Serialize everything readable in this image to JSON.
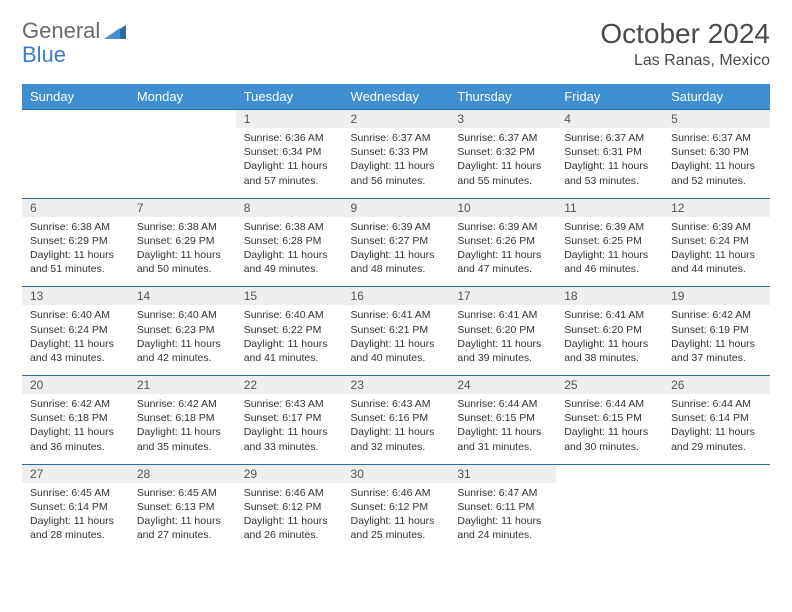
{
  "logo": {
    "text1": "General",
    "text2": "Blue",
    "icon_color": "#2c6aa0"
  },
  "title": "October 2024",
  "location": "Las Ranas, Mexico",
  "colors": {
    "header_bg": "#3d8fd1",
    "header_fg": "#ffffff",
    "daynum_bg": "#eeeeee",
    "border": "#2c6aa0",
    "text": "#333333",
    "title": "#4a4a4a"
  },
  "dayNames": [
    "Sunday",
    "Monday",
    "Tuesday",
    "Wednesday",
    "Thursday",
    "Friday",
    "Saturday"
  ],
  "weeks": [
    [
      null,
      null,
      {
        "n": "1",
        "sr": "6:36 AM",
        "ss": "6:34 PM",
        "dl": "11 hours and 57 minutes."
      },
      {
        "n": "2",
        "sr": "6:37 AM",
        "ss": "6:33 PM",
        "dl": "11 hours and 56 minutes."
      },
      {
        "n": "3",
        "sr": "6:37 AM",
        "ss": "6:32 PM",
        "dl": "11 hours and 55 minutes."
      },
      {
        "n": "4",
        "sr": "6:37 AM",
        "ss": "6:31 PM",
        "dl": "11 hours and 53 minutes."
      },
      {
        "n": "5",
        "sr": "6:37 AM",
        "ss": "6:30 PM",
        "dl": "11 hours and 52 minutes."
      }
    ],
    [
      {
        "n": "6",
        "sr": "6:38 AM",
        "ss": "6:29 PM",
        "dl": "11 hours and 51 minutes."
      },
      {
        "n": "7",
        "sr": "6:38 AM",
        "ss": "6:29 PM",
        "dl": "11 hours and 50 minutes."
      },
      {
        "n": "8",
        "sr": "6:38 AM",
        "ss": "6:28 PM",
        "dl": "11 hours and 49 minutes."
      },
      {
        "n": "9",
        "sr": "6:39 AM",
        "ss": "6:27 PM",
        "dl": "11 hours and 48 minutes."
      },
      {
        "n": "10",
        "sr": "6:39 AM",
        "ss": "6:26 PM",
        "dl": "11 hours and 47 minutes."
      },
      {
        "n": "11",
        "sr": "6:39 AM",
        "ss": "6:25 PM",
        "dl": "11 hours and 46 minutes."
      },
      {
        "n": "12",
        "sr": "6:39 AM",
        "ss": "6:24 PM",
        "dl": "11 hours and 44 minutes."
      }
    ],
    [
      {
        "n": "13",
        "sr": "6:40 AM",
        "ss": "6:24 PM",
        "dl": "11 hours and 43 minutes."
      },
      {
        "n": "14",
        "sr": "6:40 AM",
        "ss": "6:23 PM",
        "dl": "11 hours and 42 minutes."
      },
      {
        "n": "15",
        "sr": "6:40 AM",
        "ss": "6:22 PM",
        "dl": "11 hours and 41 minutes."
      },
      {
        "n": "16",
        "sr": "6:41 AM",
        "ss": "6:21 PM",
        "dl": "11 hours and 40 minutes."
      },
      {
        "n": "17",
        "sr": "6:41 AM",
        "ss": "6:20 PM",
        "dl": "11 hours and 39 minutes."
      },
      {
        "n": "18",
        "sr": "6:41 AM",
        "ss": "6:20 PM",
        "dl": "11 hours and 38 minutes."
      },
      {
        "n": "19",
        "sr": "6:42 AM",
        "ss": "6:19 PM",
        "dl": "11 hours and 37 minutes."
      }
    ],
    [
      {
        "n": "20",
        "sr": "6:42 AM",
        "ss": "6:18 PM",
        "dl": "11 hours and 36 minutes."
      },
      {
        "n": "21",
        "sr": "6:42 AM",
        "ss": "6:18 PM",
        "dl": "11 hours and 35 minutes."
      },
      {
        "n": "22",
        "sr": "6:43 AM",
        "ss": "6:17 PM",
        "dl": "11 hours and 33 minutes."
      },
      {
        "n": "23",
        "sr": "6:43 AM",
        "ss": "6:16 PM",
        "dl": "11 hours and 32 minutes."
      },
      {
        "n": "24",
        "sr": "6:44 AM",
        "ss": "6:15 PM",
        "dl": "11 hours and 31 minutes."
      },
      {
        "n": "25",
        "sr": "6:44 AM",
        "ss": "6:15 PM",
        "dl": "11 hours and 30 minutes."
      },
      {
        "n": "26",
        "sr": "6:44 AM",
        "ss": "6:14 PM",
        "dl": "11 hours and 29 minutes."
      }
    ],
    [
      {
        "n": "27",
        "sr": "6:45 AM",
        "ss": "6:14 PM",
        "dl": "11 hours and 28 minutes."
      },
      {
        "n": "28",
        "sr": "6:45 AM",
        "ss": "6:13 PM",
        "dl": "11 hours and 27 minutes."
      },
      {
        "n": "29",
        "sr": "6:46 AM",
        "ss": "6:12 PM",
        "dl": "11 hours and 26 minutes."
      },
      {
        "n": "30",
        "sr": "6:46 AM",
        "ss": "6:12 PM",
        "dl": "11 hours and 25 minutes."
      },
      {
        "n": "31",
        "sr": "6:47 AM",
        "ss": "6:11 PM",
        "dl": "11 hours and 24 minutes."
      },
      null,
      null
    ]
  ]
}
